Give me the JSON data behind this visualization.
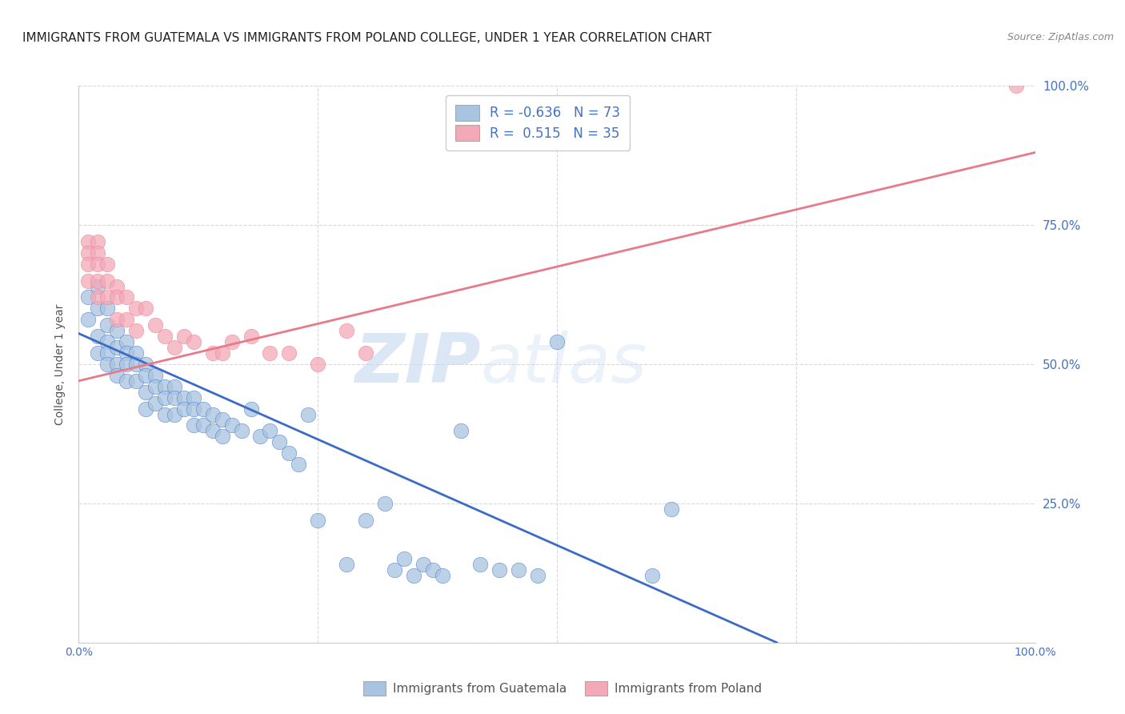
{
  "title": "IMMIGRANTS FROM GUATEMALA VS IMMIGRANTS FROM POLAND COLLEGE, UNDER 1 YEAR CORRELATION CHART",
  "source": "Source: ZipAtlas.com",
  "ylabel": "College, Under 1 year",
  "legend_bottom": [
    "Immigrants from Guatemala",
    "Immigrants from Poland"
  ],
  "guatemala_R": -0.636,
  "guatemala_N": 73,
  "poland_R": 0.515,
  "poland_N": 35,
  "guatemala_color": "#a8c4e0",
  "poland_color": "#f4a8b8",
  "guatemala_line_color": "#3b6bc7",
  "poland_line_color": "#e87a8a",
  "background_color": "#ffffff",
  "grid_color": "#d8d8e0",
  "title_fontsize": 11,
  "source_fontsize": 9,
  "right_label_color": "#4472c4",
  "watermark_zip": "ZIP",
  "watermark_atlas": "atlas",
  "guatemala_x": [
    0.01,
    0.01,
    0.02,
    0.02,
    0.02,
    0.02,
    0.03,
    0.03,
    0.03,
    0.03,
    0.03,
    0.04,
    0.04,
    0.04,
    0.04,
    0.05,
    0.05,
    0.05,
    0.05,
    0.06,
    0.06,
    0.06,
    0.07,
    0.07,
    0.07,
    0.07,
    0.08,
    0.08,
    0.08,
    0.09,
    0.09,
    0.09,
    0.1,
    0.1,
    0.1,
    0.11,
    0.11,
    0.12,
    0.12,
    0.12,
    0.13,
    0.13,
    0.14,
    0.14,
    0.15,
    0.15,
    0.16,
    0.17,
    0.18,
    0.19,
    0.2,
    0.21,
    0.22,
    0.23,
    0.24,
    0.25,
    0.28,
    0.3,
    0.32,
    0.33,
    0.34,
    0.35,
    0.36,
    0.37,
    0.38,
    0.4,
    0.42,
    0.44,
    0.46,
    0.48,
    0.5,
    0.6,
    0.62
  ],
  "guatemala_y": [
    0.62,
    0.58,
    0.64,
    0.6,
    0.55,
    0.52,
    0.6,
    0.57,
    0.54,
    0.52,
    0.5,
    0.56,
    0.53,
    0.5,
    0.48,
    0.54,
    0.52,
    0.5,
    0.47,
    0.52,
    0.5,
    0.47,
    0.5,
    0.48,
    0.45,
    0.42,
    0.48,
    0.46,
    0.43,
    0.46,
    0.44,
    0.41,
    0.46,
    0.44,
    0.41,
    0.44,
    0.42,
    0.44,
    0.42,
    0.39,
    0.42,
    0.39,
    0.41,
    0.38,
    0.4,
    0.37,
    0.39,
    0.38,
    0.42,
    0.37,
    0.38,
    0.36,
    0.34,
    0.32,
    0.41,
    0.22,
    0.14,
    0.22,
    0.25,
    0.13,
    0.15,
    0.12,
    0.14,
    0.13,
    0.12,
    0.38,
    0.14,
    0.13,
    0.13,
    0.12,
    0.54,
    0.12,
    0.24
  ],
  "poland_x": [
    0.01,
    0.01,
    0.01,
    0.01,
    0.02,
    0.02,
    0.02,
    0.02,
    0.02,
    0.03,
    0.03,
    0.03,
    0.04,
    0.04,
    0.04,
    0.05,
    0.05,
    0.06,
    0.06,
    0.07,
    0.08,
    0.09,
    0.1,
    0.11,
    0.12,
    0.14,
    0.15,
    0.16,
    0.18,
    0.2,
    0.22,
    0.25,
    0.28,
    0.3,
    0.98
  ],
  "poland_y": [
    0.72,
    0.7,
    0.68,
    0.65,
    0.72,
    0.7,
    0.68,
    0.65,
    0.62,
    0.68,
    0.65,
    0.62,
    0.64,
    0.62,
    0.58,
    0.62,
    0.58,
    0.6,
    0.56,
    0.6,
    0.57,
    0.55,
    0.53,
    0.55,
    0.54,
    0.52,
    0.52,
    0.54,
    0.55,
    0.52,
    0.52,
    0.5,
    0.56,
    0.52,
    1.0
  ],
  "xlim": [
    0.0,
    1.0
  ],
  "ylim": [
    0.0,
    1.0
  ],
  "guatemala_line_x0": 0.0,
  "guatemala_line_x1": 0.73,
  "guatemala_line_y0": 0.555,
  "guatemala_line_y1": 0.0,
  "poland_line_x0": 0.0,
  "poland_line_x1": 1.0,
  "poland_line_y0": 0.47,
  "poland_line_y1": 0.88
}
